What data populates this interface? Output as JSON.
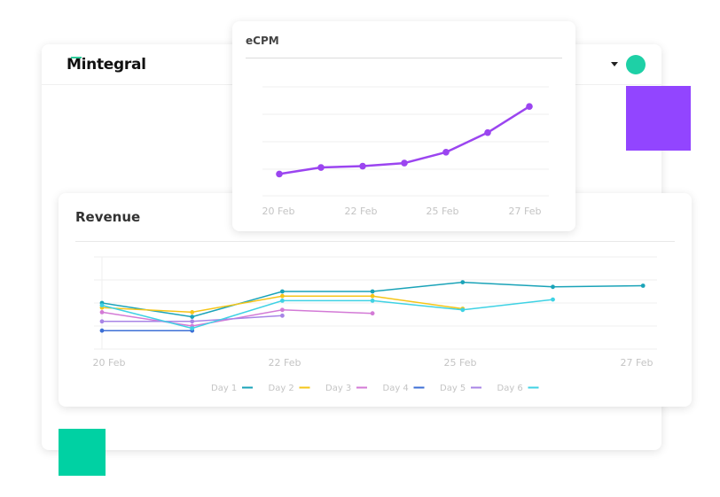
{
  "header": {
    "logo_text": "Mintegral",
    "brand_accent": "#2ecc9a",
    "avatar_color": "#1ed0a6"
  },
  "decor": {
    "purple": "#9245ff",
    "green": "#00d1a3"
  },
  "chart_data": [
    {
      "type": "line",
      "title": "eCPM",
      "x_ticks": [
        "20 Feb",
        "22 Feb",
        "25 Feb",
        "27 Feb"
      ],
      "series": [
        {
          "color": "#9b45f0",
          "values": [
            1.0,
            1.3,
            1.36,
            1.5,
            2.0,
            2.9,
            4.1
          ]
        }
      ],
      "ylim": [
        0,
        5
      ],
      "grid": true
    },
    {
      "type": "line",
      "title": "Revenue",
      "x_ticks": [
        "20 Feb",
        "22 Feb",
        "25 Feb",
        "27 Feb"
      ],
      "ylim": [
        0,
        4
      ],
      "grid": true,
      "legend_position": "bottom",
      "series": [
        {
          "name": "Day 1",
          "color": "#1aa3b8",
          "values": [
            2.0,
            1.4,
            2.5,
            2.5,
            2.9,
            2.7,
            2.75
          ]
        },
        {
          "name": "Day 2",
          "color": "#f5c518",
          "values": [
            1.8,
            1.6,
            2.3,
            2.3,
            1.75
          ]
        },
        {
          "name": "Day 3",
          "color": "#d37ad6",
          "values": [
            1.6,
            1.0,
            1.7,
            1.55
          ]
        },
        {
          "name": "Day 4",
          "color": "#3d6fd6",
          "values": [
            0.8,
            0.8
          ]
        },
        {
          "name": "Day 5",
          "color": "#a884e6",
          "values": [
            1.2,
            1.2,
            1.45
          ]
        },
        {
          "name": "Day 6",
          "color": "#3fd2e4",
          "values": [
            1.9,
            0.9,
            2.1,
            2.1,
            1.7,
            2.15
          ]
        }
      ]
    }
  ]
}
